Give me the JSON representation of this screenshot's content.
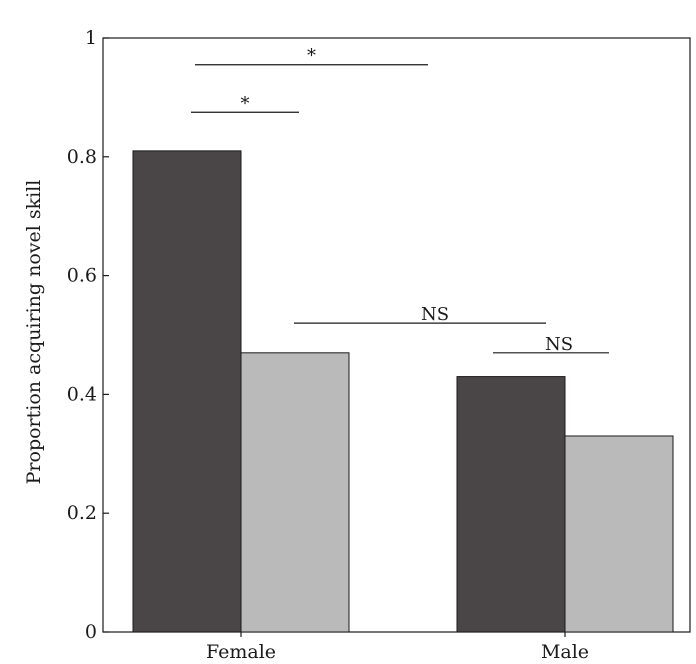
{
  "chart_data": {
    "type": "bar",
    "title": "",
    "xlabel": "",
    "ylabel": "Proportion acquiring novel skill",
    "ylim": [
      0,
      1
    ],
    "yticks": [
      {
        "value": 0,
        "label": "0"
      },
      {
        "value": 0.2,
        "label": "0.2"
      },
      {
        "value": 0.4,
        "label": "0.4"
      },
      {
        "value": 0.6,
        "label": "0.6"
      },
      {
        "value": 0.8,
        "label": "0.8"
      },
      {
        "value": 1,
        "label": "1"
      }
    ],
    "categories": [
      "Female",
      "Male"
    ],
    "series": [
      {
        "values": [
          0.81,
          0.43
        ],
        "color": "#4a4546"
      },
      {
        "values": [
          0.47,
          0.33
        ],
        "color": "#bababa"
      }
    ],
    "grid": false,
    "legend": "none",
    "annotations": [
      {
        "label": "*",
        "from": {
          "category": 0,
          "series": 0
        },
        "to": {
          "category": 1,
          "series": 0
        },
        "y": 0.955
      },
      {
        "label": "*",
        "from": {
          "category": 0,
          "series": 0
        },
        "to": {
          "category": 0,
          "series": 1
        },
        "y": 0.875
      },
      {
        "label": "NS",
        "from": {
          "category": 0,
          "series": 1
        },
        "to": {
          "category": 1,
          "series": 1
        },
        "y": 0.52
      },
      {
        "label": "NS",
        "from": {
          "category": 1,
          "series": 0
        },
        "to": {
          "category": 1,
          "series": 1
        },
        "y": 0.47
      }
    ]
  }
}
